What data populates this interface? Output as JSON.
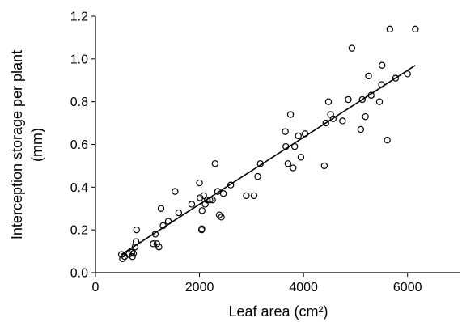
{
  "chart_data": {
    "type": "scatter",
    "xlabel": "Leaf area (cm²)",
    "ylabel": [
      "Interception storage per plant",
      "(mm)"
    ],
    "xlim": [
      0,
      7000
    ],
    "ylim": [
      0,
      1.2
    ],
    "x_ticks": [
      0,
      2000,
      4000,
      6000
    ],
    "x_tick_labels": [
      "0",
      "2000",
      "4000",
      "6000"
    ],
    "y_ticks": [
      0,
      0.2,
      0.4,
      0.6,
      0.8,
      1.0,
      1.2
    ],
    "y_tick_labels": [
      "0.0",
      "0.2",
      "0.4",
      "0.6",
      "0.8",
      "1.0",
      "1.2"
    ],
    "grid": false,
    "series": [
      {
        "marker": "open-circle",
        "points": [
          [
            500,
            0.085
          ],
          [
            520,
            0.065
          ],
          [
            560,
            0.075
          ],
          [
            640,
            0.085
          ],
          [
            700,
            0.095
          ],
          [
            710,
            0.075
          ],
          [
            730,
            0.09
          ],
          [
            760,
            0.12
          ],
          [
            780,
            0.145
          ],
          [
            790,
            0.2
          ],
          [
            1110,
            0.135
          ],
          [
            1150,
            0.18
          ],
          [
            1180,
            0.135
          ],
          [
            1220,
            0.12
          ],
          [
            1260,
            0.3
          ],
          [
            1300,
            0.22
          ],
          [
            1400,
            0.24
          ],
          [
            1530,
            0.38
          ],
          [
            1600,
            0.28
          ],
          [
            1850,
            0.32
          ],
          [
            2000,
            0.42
          ],
          [
            2010,
            0.35
          ],
          [
            2040,
            0.2
          ],
          [
            2050,
            0.29
          ],
          [
            2080,
            0.36
          ],
          [
            2110,
            0.32
          ],
          [
            2150,
            0.34
          ],
          [
            2200,
            0.34
          ],
          [
            2250,
            0.34
          ],
          [
            2300,
            0.51
          ],
          [
            2350,
            0.38
          ],
          [
            2380,
            0.27
          ],
          [
            2420,
            0.26
          ],
          [
            2460,
            0.37
          ],
          [
            2600,
            0.41
          ],
          [
            2900,
            0.36
          ],
          [
            3050,
            0.36
          ],
          [
            3120,
            0.45
          ],
          [
            3170,
            0.51
          ],
          [
            3650,
            0.66
          ],
          [
            3660,
            0.59
          ],
          [
            3700,
            0.51
          ],
          [
            3750,
            0.74
          ],
          [
            3800,
            0.49
          ],
          [
            3830,
            0.59
          ],
          [
            3900,
            0.64
          ],
          [
            3950,
            0.54
          ],
          [
            4030,
            0.65
          ],
          [
            4400,
            0.5
          ],
          [
            4430,
            0.7
          ],
          [
            4480,
            0.8
          ],
          [
            4520,
            0.74
          ],
          [
            4570,
            0.72
          ],
          [
            4750,
            0.71
          ],
          [
            4860,
            0.81
          ],
          [
            4930,
            1.05
          ],
          [
            5100,
            0.67
          ],
          [
            5130,
            0.81
          ],
          [
            5190,
            0.73
          ],
          [
            5250,
            0.92
          ],
          [
            5300,
            0.83
          ],
          [
            5460,
            0.8
          ],
          [
            5500,
            0.88
          ],
          [
            5510,
            0.97
          ],
          [
            5610,
            0.62
          ],
          [
            5660,
            1.14
          ],
          [
            5770,
            0.91
          ],
          [
            6000,
            0.93
          ],
          [
            6150,
            1.14
          ],
          [
            2045,
            0.205
          ]
        ]
      }
    ],
    "fit_line": {
      "type": "linear",
      "x": [
        500,
        6150
      ],
      "y": [
        0.085,
        0.97
      ]
    }
  }
}
